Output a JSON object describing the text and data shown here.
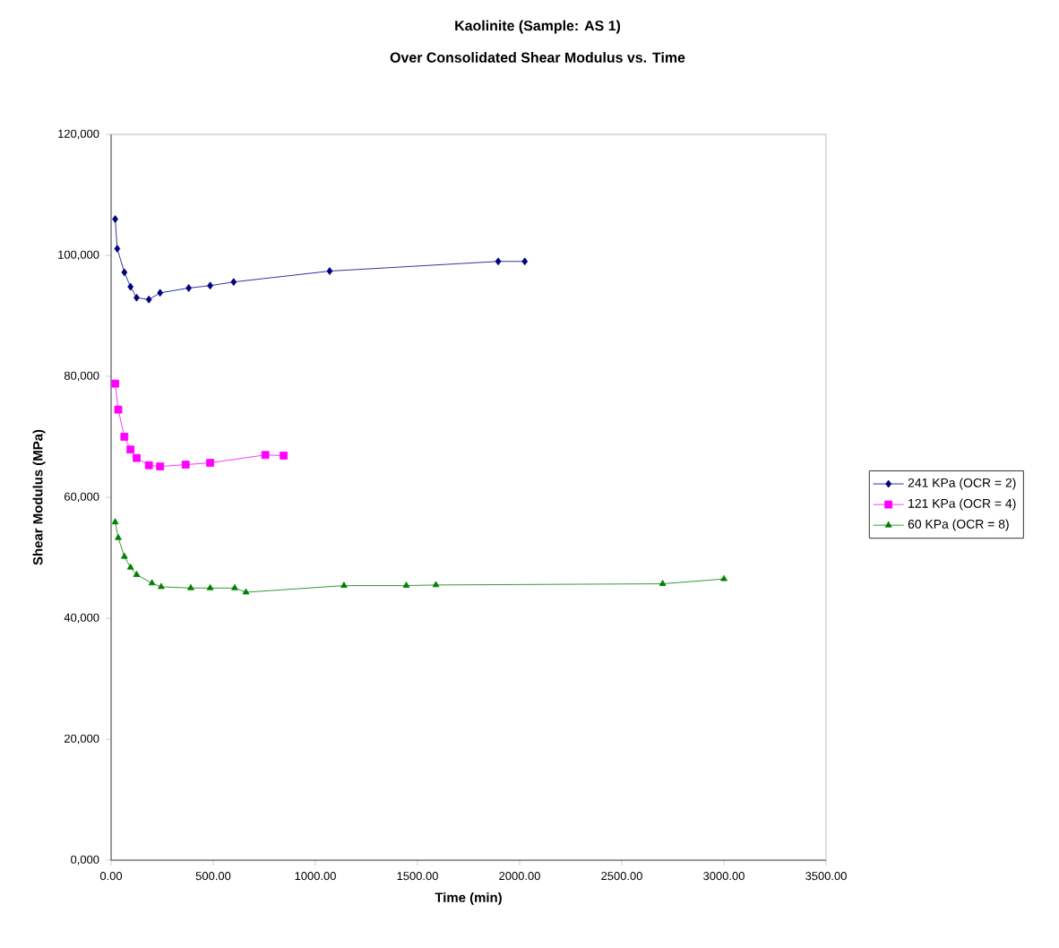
{
  "chart_data": {
    "type": "line",
    "title": "Kaolinite (Sample: AS 1)",
    "subtitle": "Over Consolidated Shear Modulus vs. Time",
    "xlabel": "Time (min)",
    "ylabel": "Shear Modulus (MPa)",
    "xlim": [
      0,
      3500
    ],
    "ylim": [
      0,
      120000
    ],
    "xticks": [
      {
        "value": 0,
        "label": "0.00"
      },
      {
        "value": 500,
        "label": "500.00"
      },
      {
        "value": 1000,
        "label": "1000.00"
      },
      {
        "value": 1500,
        "label": "1500.00"
      },
      {
        "value": 2000,
        "label": "2000.00"
      },
      {
        "value": 2500,
        "label": "2500.00"
      },
      {
        "value": 3000,
        "label": "3000.00"
      },
      {
        "value": 3500,
        "label": "3500.00"
      }
    ],
    "yticks": [
      {
        "value": 0,
        "label": "0,000"
      },
      {
        "value": 20000,
        "label": "20,000"
      },
      {
        "value": 40000,
        "label": "40,000"
      },
      {
        "value": 60000,
        "label": "60,000"
      },
      {
        "value": 80000,
        "label": "80,000"
      },
      {
        "value": 100000,
        "label": "100,000"
      },
      {
        "value": 120000,
        "label": "120,000"
      }
    ],
    "legend": "right",
    "grid": false,
    "line_style": "solid",
    "series": [
      {
        "name": "241 KPa (OCR = 2)",
        "color": "#000080",
        "marker": "diamond",
        "x": [
          20,
          30,
          65,
          95,
          125,
          185,
          240,
          380,
          485,
          600,
          1070,
          1895,
          2025
        ],
        "values": [
          106000,
          101100,
          97200,
          94800,
          93000,
          92700,
          93800,
          94600,
          95000,
          95600,
          97400,
          99000,
          99000
        ]
      },
      {
        "name": "121 KPa (OCR = 4)",
        "color": "#ff00ff",
        "marker": "square",
        "x": [
          20,
          35,
          65,
          95,
          125,
          185,
          240,
          365,
          485,
          755,
          845
        ],
        "values": [
          78800,
          74500,
          70000,
          67900,
          66500,
          65300,
          65100,
          65400,
          65700,
          67000,
          66900
        ]
      },
      {
        "name": "60 KPa (OCR = 8)",
        "color": "#008000",
        "marker": "triangle",
        "x": [
          20,
          35,
          65,
          95,
          125,
          200,
          245,
          390,
          485,
          605,
          660,
          1140,
          1445,
          1590,
          2700,
          3000
        ],
        "values": [
          55900,
          53300,
          50200,
          48400,
          47200,
          45800,
          45200,
          45000,
          45000,
          45000,
          44300,
          45400,
          45400,
          45500,
          45700,
          46500
        ]
      }
    ]
  }
}
